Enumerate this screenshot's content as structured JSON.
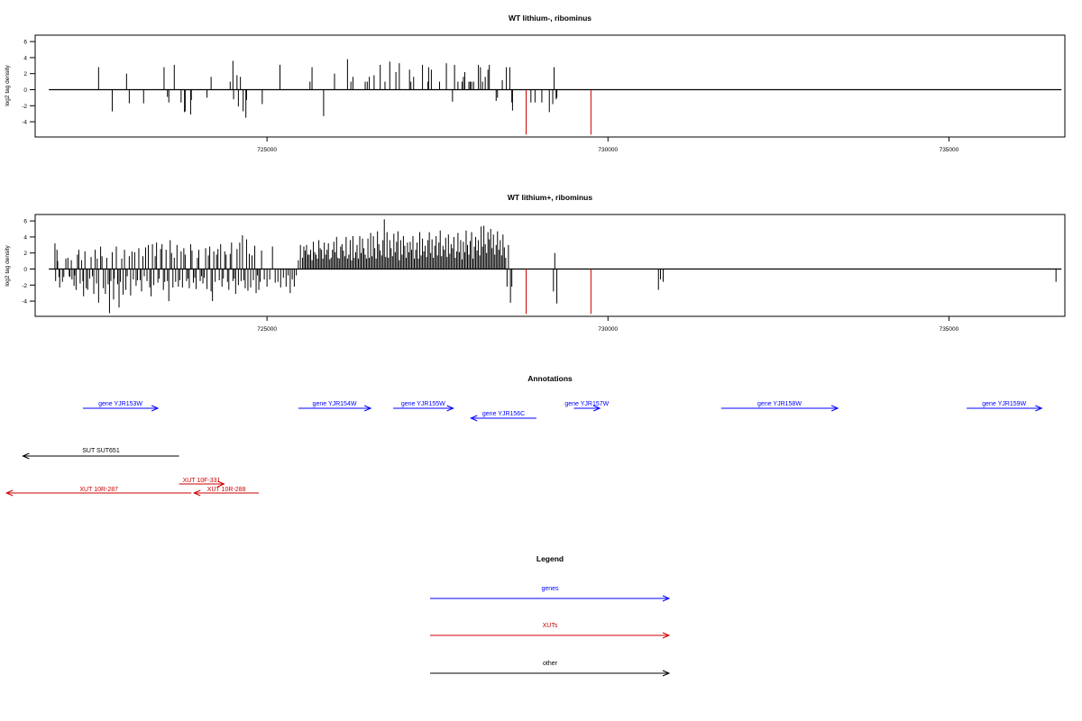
{
  "chart_data": [
    {
      "type": "bar",
      "title": "WT lithium-, ribominus",
      "ylabel": "log2 tag density",
      "xlim": [
        721600,
        736700
      ],
      "ylim": [
        -5.9,
        6.8
      ],
      "xticks": [
        "725000",
        "730000",
        "735000"
      ],
      "xtick_values": [
        725000,
        730000,
        735000
      ],
      "yticks": [
        "6",
        "4",
        "2",
        "0",
        "-2",
        "-4"
      ],
      "ytick_values": [
        6,
        4,
        2,
        0,
        -2,
        -4
      ],
      "baseline": {
        "from": 721800,
        "to": 736650
      },
      "series": [
        {
          "color": "#000000",
          "x": [
            722530,
            722730,
            722940,
            722980,
            723190,
            723490,
            723540,
            723560,
            723640,
            723740,
            723790,
            723800,
            723880,
            723890,
            724120,
            724180,
            724460,
            724510,
            724500,
            724560,
            724580,
            724610,
            724650,
            724690,
            724700,
            724930,
            725190,
            725630,
            725660,
            725830,
            725990,
            726180,
            726260,
            726230,
            726440,
            726470,
            726500,
            726570,
            726660,
            726730,
            726800,
            726890,
            726940,
            727090,
            727110,
            727150,
            727280,
            727360,
            727370,
            727410,
            727530,
            727630,
            727720,
            727750,
            727800,
            727860,
            727880,
            727900,
            727960,
            727980,
            728000,
            728030,
            728100,
            728130,
            728160,
            728200,
            728240,
            728260,
            728360,
            728380,
            728450,
            728510,
            728560,
            728590,
            728600,
            728870,
            728930,
            729030,
            729140,
            729190,
            729210,
            729240,
            729250
          ],
          "values": [
            2.8,
            -2.7,
            2.0,
            -1.7,
            -1.7,
            2.8,
            -0.9,
            -1.6,
            3.1,
            -1.6,
            -2.8,
            -2.7,
            -3.1,
            -1.3,
            -1.0,
            1.6,
            1.0,
            -1.2,
            3.6,
            1.8,
            -2.1,
            1.6,
            -2.7,
            -3.5,
            -1.3,
            -1.8,
            3.1,
            1.0,
            2.8,
            -3.3,
            2.0,
            3.8,
            1.6,
            1.0,
            1.0,
            1.0,
            1.6,
            1.8,
            3.1,
            1.0,
            3.5,
            2.2,
            3.3,
            2.5,
            1.0,
            1.6,
            3.1,
            1.0,
            2.8,
            2.5,
            1.0,
            3.3,
            -1.5,
            3.1,
            1.0,
            1.0,
            1.6,
            2.2,
            1.0,
            1.0,
            1.0,
            1.0,
            3.1,
            2.8,
            1.0,
            1.6,
            2.5,
            3.1,
            -1.4,
            -1.0,
            1.2,
            2.8,
            2.8,
            -1.6,
            -2.6,
            -1.6,
            -1.6,
            -1.6,
            -2.8,
            -1.8,
            2.8,
            -1.2,
            -1.0
          ]
        },
        {
          "color": "#cc0000",
          "x": [
            728800,
            729750
          ],
          "values": [
            -5.6,
            -5.6
          ]
        }
      ]
    },
    {
      "type": "bar",
      "title": "WT lithium+, ribominus",
      "ylabel": "log2 tag density",
      "xlim": [
        721600,
        736700
      ],
      "ylim": [
        -5.9,
        6.8
      ],
      "xticks": [
        "725000",
        "730000",
        "735000"
      ],
      "xtick_values": [
        725000,
        730000,
        735000
      ],
      "yticks": [
        "6",
        "4",
        "2",
        "0",
        "-2",
        "-4"
      ],
      "ytick_values": [
        6,
        4,
        2,
        0,
        -2,
        -4
      ],
      "baseline": {
        "from": 721800,
        "to": 736650
      },
      "series": [
        {
          "color": "#000000",
          "x": [
            721890,
            721900,
            721920,
            721930,
            721950,
            721960,
            722000,
            722020,
            722050,
            722080,
            722100,
            722110,
            722130,
            722140,
            722170,
            722180,
            722200,
            722220,
            722240,
            722260,
            722280,
            722300,
            722310,
            722330,
            722350,
            722370,
            722400,
            722420,
            722440,
            722460,
            722480,
            722500,
            722510,
            722530,
            722560,
            722580,
            722600,
            722630,
            722650,
            722670,
            722690,
            722710,
            722730,
            722750,
            722760,
            722790,
            722810,
            722830,
            722850,
            722870,
            722890,
            722910,
            722930,
            722950,
            722980,
            723000,
            723020,
            723040,
            723060,
            723080,
            723100,
            723120,
            723140,
            723160,
            723180,
            723200,
            723220,
            723240,
            723260,
            723280,
            723300,
            723320,
            723340,
            723360,
            723380,
            723400,
            723420,
            723440,
            723460,
            723480,
            723500,
            723520,
            723540,
            723560,
            723580,
            723600,
            723620,
            723640,
            723660,
            723680,
            723700,
            723720,
            723740,
            723760,
            723780,
            723800,
            723820,
            723840,
            723860,
            723880,
            723900,
            723920,
            723940,
            723960,
            723980,
            724000,
            724020,
            724040,
            724060,
            724080,
            724100,
            724120,
            724140,
            724160,
            724180,
            724200,
            724220,
            724240,
            724260,
            724280,
            724300,
            724320,
            724340,
            724360,
            724380,
            724400,
            724420,
            724440,
            724460,
            724480,
            724500,
            724520,
            724540,
            724560,
            724580,
            724600,
            724620,
            724640,
            724660,
            724680,
            724700,
            724720,
            724740,
            724760,
            724780,
            724800,
            724820,
            724840,
            724860,
            724880,
            724900,
            724920,
            724960,
            725000,
            725040,
            725080,
            725120,
            725160,
            725200,
            725240,
            725280,
            725310,
            725340,
            725370,
            725400,
            725430,
            725460,
            725490,
            725520,
            725540,
            725560,
            725580,
            725600,
            725620,
            725640,
            725660,
            725680,
            725700,
            725720,
            725740,
            725760,
            725780,
            725800,
            725820,
            725840,
            725860,
            725880,
            725900,
            725920,
            725940,
            725960,
            725980,
            726000,
            726020,
            726040,
            726060,
            726080,
            726100,
            726120,
            726140,
            726160,
            726180,
            726200,
            726220,
            726240,
            726260,
            726280,
            726300,
            726320,
            726340,
            726360,
            726380,
            726400,
            726420,
            726440,
            726460,
            726480,
            726500,
            726520,
            726540,
            726560,
            726580,
            726600,
            726620,
            726640,
            726660,
            726680,
            726700,
            726720,
            726740,
            726760,
            726780,
            726800,
            726820,
            726840,
            726860,
            726880,
            726900,
            726920,
            726940,
            726960,
            726980,
            727000,
            727020,
            727040,
            727060,
            727080,
            727100,
            727120,
            727140,
            727160,
            727180,
            727200,
            727220,
            727240,
            727260,
            727280,
            727300,
            727320,
            727340,
            727360,
            727380,
            727400,
            727420,
            727440,
            727460,
            727480,
            727500,
            727520,
            727540,
            727560,
            727580,
            727600,
            727620,
            727640,
            727660,
            727680,
            727700,
            727720,
            727740,
            727760,
            727780,
            727800,
            727820,
            727840,
            727860,
            727880,
            727900,
            727920,
            727940,
            727960,
            727980,
            728000,
            728020,
            728040,
            728060,
            728080,
            728100,
            728120,
            728140,
            728160,
            728180,
            728200,
            728220,
            728240,
            728260,
            728280,
            728300,
            728320,
            728340,
            728360,
            728380,
            728400,
            728420,
            728440,
            728460,
            728480,
            728500,
            728520,
            728540,
            728570,
            728590,
            729200,
            729220,
            729250,
            730740,
            730770,
            730810,
            736570
          ],
          "values": [
            3.2,
            -1.5,
            2.4,
            1.0,
            -1.0,
            -2.3,
            -1.6,
            -1.0,
            1.3,
            1.4,
            -0.9,
            -1.0,
            1.1,
            -1.3,
            -2.1,
            -0.8,
            -2.6,
            1.8,
            2.4,
            -1.8,
            1.1,
            -1.5,
            -3.4,
            2.2,
            -2.4,
            -2.6,
            -1.2,
            1.5,
            -0.9,
            -3.1,
            2.4,
            -1.8,
            1.3,
            -4.2,
            2.8,
            1.6,
            -2.4,
            -3.1,
            1.4,
            -1.9,
            -5.5,
            -1.5,
            2.1,
            -3.8,
            -1.2,
            2.8,
            -1.9,
            -4.8,
            -1.6,
            1.3,
            -3.2,
            2.4,
            -2.6,
            -0.9,
            1.6,
            -3.3,
            2.2,
            -1.3,
            2.1,
            -2.1,
            -1.4,
            2.6,
            -1.4,
            -2.8,
            1.6,
            -0.9,
            2.7,
            -1.5,
            3.0,
            -2.3,
            -3.4,
            3.1,
            -2.0,
            1.6,
            3.3,
            -1.7,
            -1.2,
            2.5,
            3.1,
            -2.6,
            -1.6,
            2.4,
            -1.5,
            -4.0,
            3.6,
            2.0,
            -2.3,
            1.4,
            -1.6,
            3.0,
            -2.2,
            -1.4,
            2.2,
            -2.3,
            2.6,
            1.8,
            -1.5,
            -1.2,
            -2.4,
            3.1,
            2.3,
            -1.7,
            -1.1,
            -2.5,
            1.4,
            2.4,
            -1.5,
            -0.9,
            -1.8,
            -1.1,
            2.6,
            -2.5,
            1.7,
            2.8,
            -2.8,
            -4.0,
            2.2,
            -1.6,
            1.8,
            2.5,
            -1.4,
            3.1,
            -2.2,
            -1.2,
            2.2,
            1.8,
            -1.6,
            -2.6,
            1.9,
            3.3,
            -1.5,
            -1.2,
            -3.1,
            2.5,
            -2.0,
            3.3,
            -1.5,
            4.2,
            -1.4,
            -2.4,
            3.7,
            -2.7,
            1.9,
            -2.3,
            1.7,
            -1.4,
            2.9,
            -3.0,
            -0.8,
            -2.6,
            -1.6,
            2.3,
            -1.3,
            -2.2,
            -1.3,
            2.8,
            -1.7,
            -1.6,
            -2.3,
            -1.1,
            -2.2,
            -0.8,
            -3.0,
            -1.3,
            -2.2,
            -0.8,
            1.1,
            3.0,
            1.4,
            2.8,
            2.3,
            3.0,
            1.8,
            1.8,
            2.4,
            1.1,
            3.4,
            2.1,
            1.8,
            1.3,
            3.6,
            2.6,
            2.4,
            1.3,
            3.3,
            1.8,
            2.4,
            3.2,
            1.2,
            1.4,
            2.4,
            3.4,
            2.1,
            4.0,
            1.4,
            1.3,
            2.8,
            3.1,
            2.3,
            1.6,
            4.0,
            1.3,
            1.8,
            3.6,
            1.1,
            4.1,
            1.4,
            2.1,
            3.0,
            1.3,
            4.1,
            2.0,
            3.8,
            2.6,
            1.8,
            1.3,
            3.8,
            1.4,
            4.5,
            1.6,
            4.1,
            2.6,
            1.3,
            4.7,
            3.1,
            2.3,
            1.7,
            3.6,
            6.2,
            1.5,
            4.6,
            1.4,
            3.6,
            2.6,
            1.6,
            4.4,
            2.1,
            3.4,
            4.7,
            1.1,
            3.6,
            1.8,
            4.1,
            2.9,
            1.4,
            3.3,
            2.1,
            3.4,
            2.4,
            4.1,
            1.3,
            2.4,
            3.3,
            1.3,
            4.6,
            1.7,
            3.8,
            2.2,
            2.9,
            1.5,
            3.6,
            4.6,
            2.0,
            3.7,
            1.4,
            2.9,
            4.1,
            1.7,
            3.3,
            4.8,
            1.6,
            2.9,
            2.4,
            3.9,
            1.5,
            4.3,
            1.9,
            3.1,
            2.6,
            4.0,
            1.4,
            2.2,
            4.5,
            2.1,
            3.6,
            1.2,
            3.4,
            2.1,
            4.8,
            3.0,
            1.8,
            3.5,
            4.6,
            1.3,
            2.8,
            4.0,
            2.3,
            3.6,
            1.7,
            5.3,
            2.8,
            5.4,
            3.1,
            2.0,
            4.6,
            3.7,
            5.0,
            2.6,
            4.3,
            1.8,
            3.0,
            4.7,
            2.4,
            3.6,
            1.7,
            4.3,
            2.7,
            1.4,
            -2.2,
            3.0,
            -4.2,
            -2.2,
            -2.8,
            2.0,
            -4.3,
            -2.6,
            -1.3,
            -1.6,
            -1.6
          ],
          "note": ""
        },
        {
          "color": "#cc0000",
          "x": [
            728800,
            729750
          ],
          "values": [
            -5.6,
            -5.6
          ]
        }
      ]
    }
  ],
  "annotations": {
    "title": "Annotations",
    "genes": [
      {
        "label": "gene YJR153W",
        "color": "#0000ff",
        "from": 722300,
        "to": 723400,
        "dir": "right"
      },
      {
        "label": "gene YJR154W",
        "color": "#0000ff",
        "from": 725460,
        "to": 726520,
        "dir": "right"
      },
      {
        "label": "gene YJR155W",
        "color": "#0000ff",
        "from": 726850,
        "to": 727730,
        "dir": "right"
      },
      {
        "label": "gene YJR156C",
        "color": "#0000ff",
        "from": 727990,
        "to": 728950,
        "dir": "left"
      },
      {
        "label": "gene YJR157W",
        "color": "#0000ff",
        "from": 729500,
        "to": 729880,
        "dir": "right"
      },
      {
        "label": "gene YJR158W",
        "color": "#0000ff",
        "from": 731660,
        "to": 733370,
        "dir": "right"
      },
      {
        "label": "gene YJR159W",
        "color": "#0000ff",
        "from": 735260,
        "to": 736360,
        "dir": "right"
      }
    ],
    "other": [
      {
        "label": "SUT SUT651",
        "color": "#000000",
        "from": 721420,
        "to": 723710,
        "dir": "left"
      }
    ],
    "xuts": [
      {
        "label": "XUT 10F-331",
        "color": "#cc0000",
        "from": 723710,
        "to": 724370,
        "dir": "right"
      },
      {
        "label": "XUT 10R-287",
        "color": "#cc0000",
        "from": 721180,
        "to": 723890,
        "dir": "left"
      },
      {
        "label": "XUT 10R-288",
        "color": "#cc0000",
        "from": 723930,
        "to": 724880,
        "dir": "left"
      }
    ]
  },
  "legend": {
    "title": "Legend",
    "items": [
      {
        "label": "genes",
        "color": "#0000ff"
      },
      {
        "label": "XUTs",
        "color": "#cc0000"
      },
      {
        "label": "other",
        "color": "#000000"
      }
    ]
  }
}
